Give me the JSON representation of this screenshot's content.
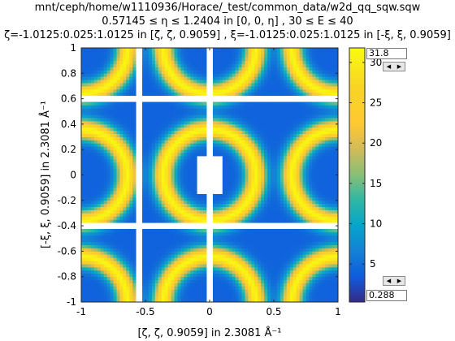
{
  "title": {
    "line1": "mnt/ceph/home/w1110936/Horace/_test/common_data/w2d_qq_sqw.sqw",
    "line2": "0.57145 ≤ η ≤ 1.2404 in [0, 0, η] , 30 ≤ E ≤ 40",
    "line3": "ζ=-1.0125:0.025:1.0125 in [ζ, ζ, 0.9059] , ξ=-1.0125:0.025:1.0125 in [-ξ, ξ, 0.9059]"
  },
  "colorbar": {
    "max_box": "31.8",
    "min_box": "0.288",
    "ticks": [
      5,
      10,
      15,
      20,
      25,
      30
    ],
    "cmin": 0.288,
    "cmax": 31.8,
    "colormap": "parula",
    "up_arrow": "◀",
    "down_arrow": "▶"
  },
  "chart_data": {
    "type": "heatmap",
    "xlabel": "[ζ, ζ, 0.9059] in 2.3081 Å⁻¹",
    "ylabel": "[-ξ, ξ, 0.9059] in 2.3081 Å⁻¹",
    "xlim": [
      -1,
      1
    ],
    "ylim": [
      -1,
      1
    ],
    "xticks": [
      -1,
      -0.5,
      0,
      0.5,
      1
    ],
    "yticks": [
      -1,
      -0.8,
      -0.6,
      -0.4,
      -0.2,
      0,
      0.2,
      0.4,
      0.6,
      0.8,
      1
    ],
    "xtick_labels": [
      "-1",
      "-0.5",
      "0",
      "0.5",
      "1"
    ],
    "ytick_labels": [
      "-1",
      "-0.8",
      "-0.6",
      "-0.4",
      "-0.2",
      "0",
      "0.2",
      "0.4",
      "0.6",
      "0.8",
      "1"
    ],
    "bin_step": 0.025,
    "pattern": "rings of high intensity (about 30) of radius about 0.35 centred at (±1, ±1), (±1, 0), (0, ±1) and (0, 0); low intensity (about 5) between rings",
    "gaps": {
      "x_columns": [
        -0.55,
        0
      ],
      "y_rows": [
        0.6,
        -0.4
      ],
      "centre_hole": [
        -0.05,
        0.05,
        -0.15,
        0.15
      ]
    }
  }
}
